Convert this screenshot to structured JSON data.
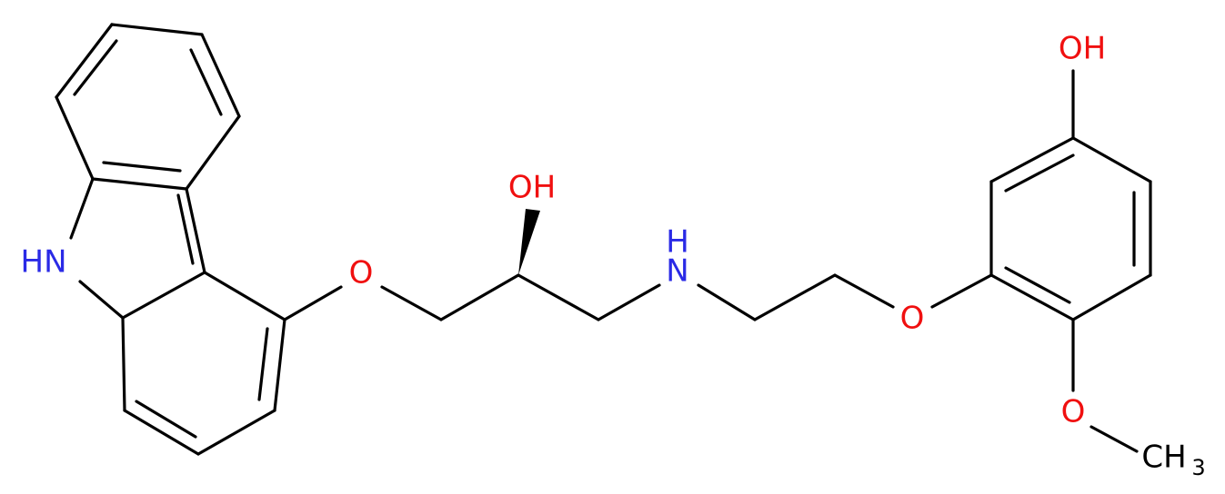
{
  "atoms": [
    "HN",
    "O",
    "OH",
    "H",
    "N",
    "O",
    "OH",
    "O",
    "CH",
    "3"
  ]
}
